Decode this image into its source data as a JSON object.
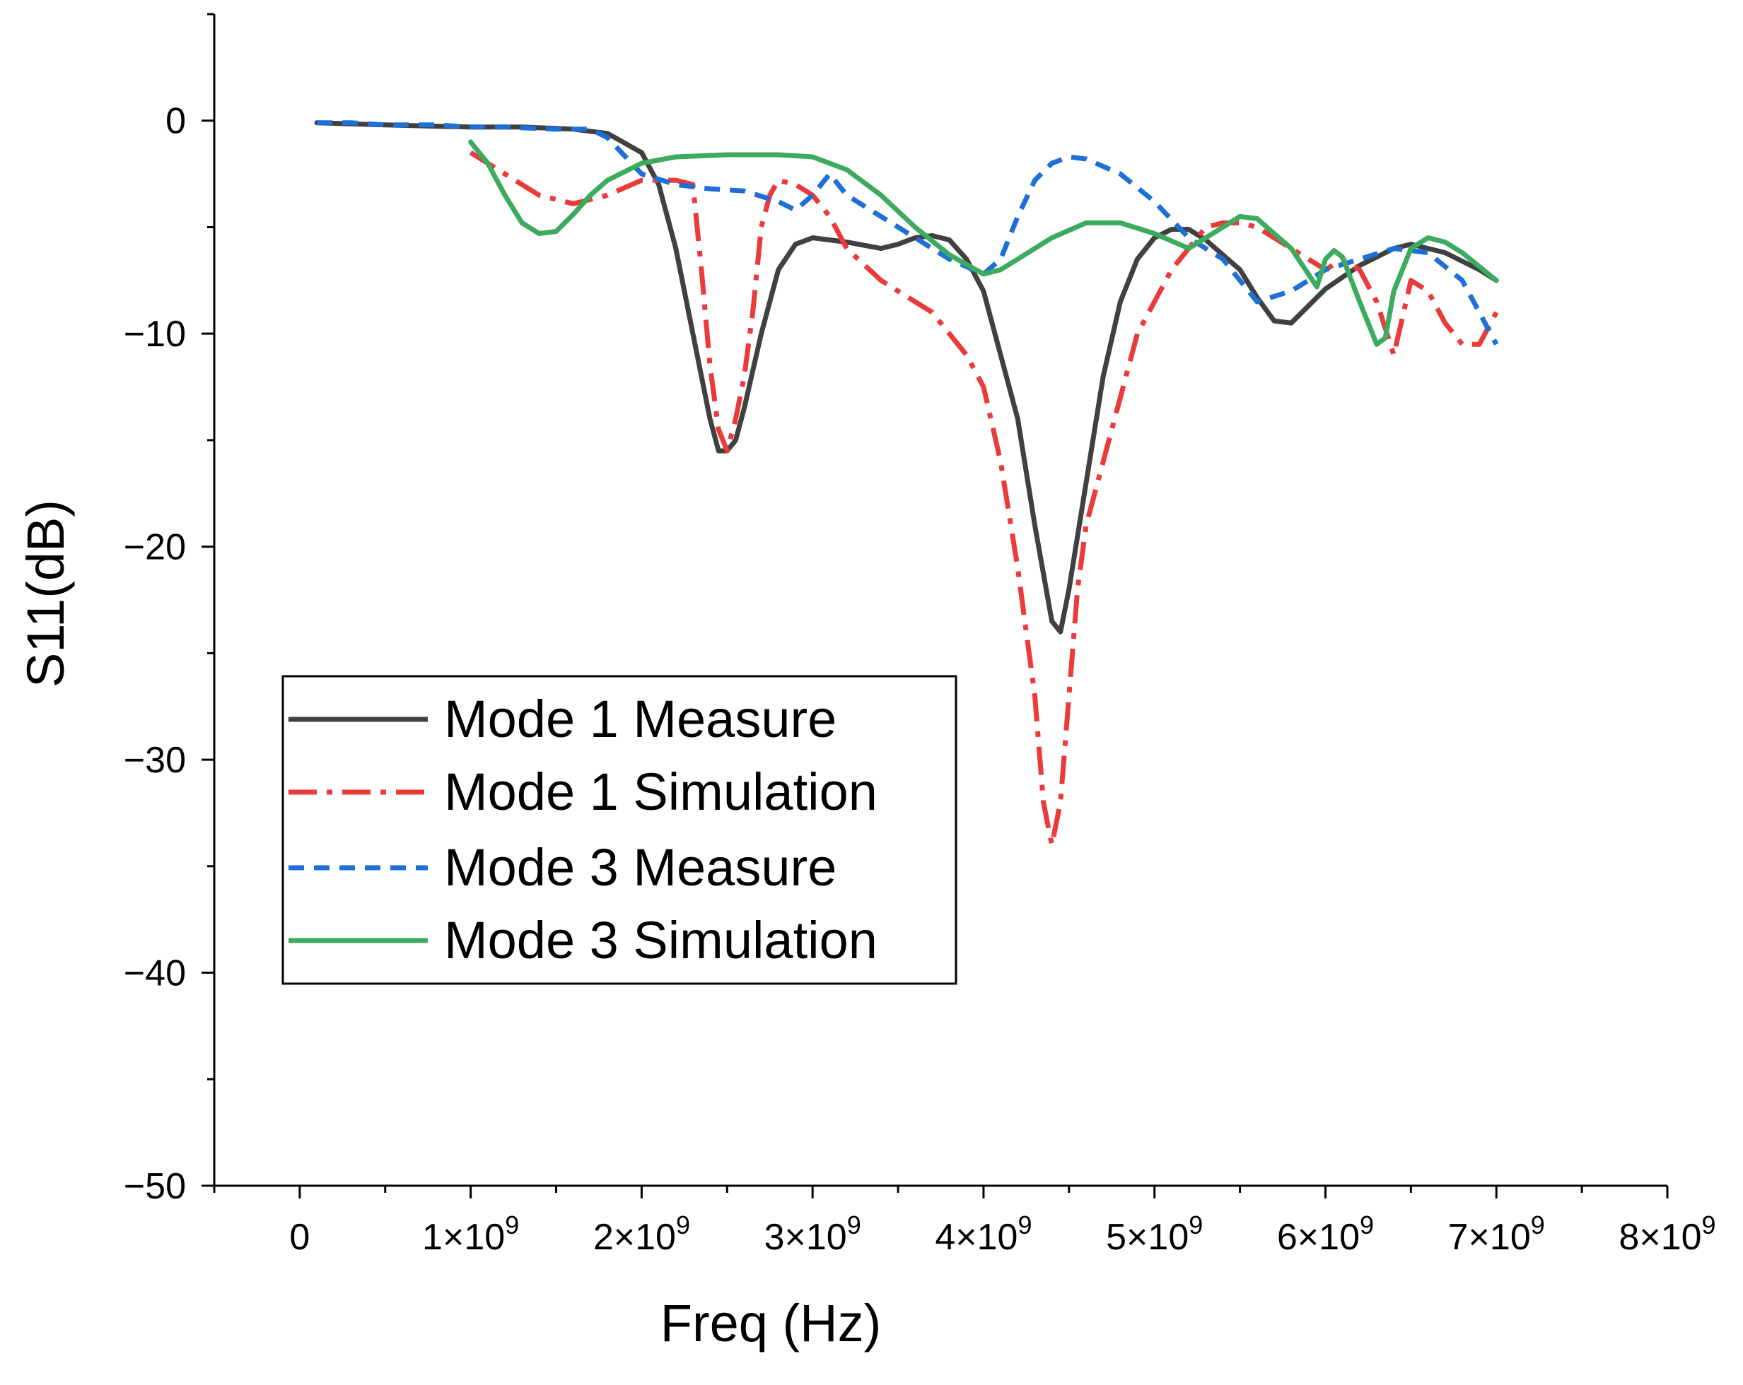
{
  "chart_data": {
    "type": "line",
    "title": "",
    "xlabel": "Freq (Hz)",
    "ylabel": "S11(dB)",
    "xlim": [
      -500000000,
      8000000000
    ],
    "ylim": [
      -50,
      5
    ],
    "x_ticks": [
      {
        "value": 0,
        "label": "0"
      },
      {
        "value": 1000000000,
        "label": "1×10",
        "exp": "9"
      },
      {
        "value": 2000000000,
        "label": "2×10",
        "exp": "9"
      },
      {
        "value": 3000000000,
        "label": "3×10",
        "exp": "9"
      },
      {
        "value": 4000000000,
        "label": "4×10",
        "exp": "9"
      },
      {
        "value": 5000000000,
        "label": "5×10",
        "exp": "9"
      },
      {
        "value": 6000000000,
        "label": "6×10",
        "exp": "9"
      },
      {
        "value": 7000000000,
        "label": "7×10",
        "exp": "9"
      },
      {
        "value": 8000000000,
        "label": "8×10",
        "exp": "9"
      }
    ],
    "y_ticks": [
      {
        "value": 0,
        "label": "0"
      },
      {
        "value": -10,
        "label": "−10"
      },
      {
        "value": -20,
        "label": "−20"
      },
      {
        "value": -30,
        "label": "−30"
      },
      {
        "value": -40,
        "label": "−40"
      },
      {
        "value": -50,
        "label": "−50"
      }
    ],
    "grid": false,
    "legend_position": "lower-left",
    "series": [
      {
        "name": "Mode 1 Measure",
        "color": "#404040",
        "style": "solid",
        "x": [
          0.1,
          0.5,
          1.0,
          1.3,
          1.6,
          1.8,
          2.0,
          2.1,
          2.2,
          2.3,
          2.4,
          2.45,
          2.5,
          2.55,
          2.6,
          2.7,
          2.8,
          2.9,
          3.0,
          3.2,
          3.4,
          3.5,
          3.6,
          3.7,
          3.8,
          3.9,
          4.0,
          4.1,
          4.2,
          4.3,
          4.4,
          4.45,
          4.5,
          4.6,
          4.7,
          4.8,
          4.9,
          5.0,
          5.1,
          5.2,
          5.3,
          5.4,
          5.5,
          5.6,
          5.7,
          5.8,
          5.9,
          6.0,
          6.2,
          6.4,
          6.5,
          6.7,
          6.9,
          7.0
        ],
        "y": [
          -0.1,
          -0.2,
          -0.3,
          -0.3,
          -0.4,
          -0.6,
          -1.5,
          -3.0,
          -6.0,
          -10.0,
          -14.0,
          -15.5,
          -15.5,
          -15.0,
          -13.5,
          -10.0,
          -7.0,
          -5.8,
          -5.5,
          -5.7,
          -6.0,
          -5.8,
          -5.5,
          -5.4,
          -5.6,
          -6.5,
          -8.0,
          -11.0,
          -14.0,
          -19.0,
          -23.5,
          -24.0,
          -22.0,
          -17.0,
          -12.0,
          -8.5,
          -6.5,
          -5.5,
          -5.1,
          -5.1,
          -5.6,
          -6.3,
          -7.0,
          -8.3,
          -9.4,
          -9.5,
          -8.7,
          -7.9,
          -6.8,
          -6.0,
          -5.8,
          -6.2,
          -7.0,
          -7.5
        ]
      },
      {
        "name": "Mode 1 Simulation",
        "color": "#ea3a3a",
        "style": "dashdot",
        "x": [
          1.0,
          1.2,
          1.4,
          1.6,
          1.8,
          2.0,
          2.2,
          2.3,
          2.35,
          2.4,
          2.45,
          2.5,
          2.55,
          2.6,
          2.65,
          2.7,
          2.75,
          2.8,
          2.9,
          3.0,
          3.1,
          3.2,
          3.4,
          3.6,
          3.7,
          3.8,
          3.9,
          4.0,
          4.1,
          4.2,
          4.3,
          4.35,
          4.4,
          4.45,
          4.5,
          4.55,
          4.6,
          4.7,
          4.8,
          4.9,
          5.0,
          5.1,
          5.2,
          5.3,
          5.4,
          5.5,
          5.6,
          5.8,
          6.0,
          6.1,
          6.2,
          6.3,
          6.4,
          6.5,
          6.6,
          6.7,
          6.8,
          6.9,
          7.0
        ],
        "y": [
          -1.5,
          -2.5,
          -3.5,
          -3.9,
          -3.5,
          -2.8,
          -2.8,
          -3.0,
          -7.0,
          -11.5,
          -14.5,
          -15.5,
          -14.0,
          -12.0,
          -9.0,
          -5.0,
          -3.5,
          -2.8,
          -3.0,
          -3.5,
          -4.5,
          -6.0,
          -7.5,
          -8.5,
          -9.0,
          -10.0,
          -11.0,
          -12.5,
          -16.0,
          -21.0,
          -27.0,
          -32.0,
          -34.0,
          -32.0,
          -27.0,
          -22.0,
          -19.0,
          -16.0,
          -13.0,
          -10.0,
          -8.5,
          -7.0,
          -6.0,
          -5.0,
          -4.8,
          -4.8,
          -5.0,
          -6.0,
          -7.0,
          -6.5,
          -7.0,
          -8.5,
          -11.0,
          -7.5,
          -8.0,
          -9.5,
          -10.5,
          -10.5,
          -9.0
        ]
      },
      {
        "name": "Mode 3 Measure",
        "color": "#1f6fd8",
        "style": "dash",
        "x": [
          0.1,
          0.3,
          0.5,
          0.8,
          1.0,
          1.2,
          1.5,
          1.7,
          1.8,
          2.0,
          2.2,
          2.4,
          2.6,
          2.8,
          2.9,
          3.0,
          3.1,
          3.2,
          3.4,
          3.6,
          3.8,
          4.0,
          4.1,
          4.2,
          4.3,
          4.4,
          4.5,
          4.6,
          4.8,
          5.0,
          5.2,
          5.4,
          5.5,
          5.6,
          5.8,
          6.0,
          6.2,
          6.4,
          6.6,
          6.8,
          6.9,
          7.0
        ],
        "y": [
          -0.1,
          -0.1,
          -0.2,
          -0.2,
          -0.3,
          -0.3,
          -0.4,
          -0.4,
          -0.8,
          -2.5,
          -3.0,
          -3.2,
          -3.3,
          -3.8,
          -4.2,
          -3.5,
          -2.5,
          -3.5,
          -4.5,
          -5.5,
          -6.5,
          -7.2,
          -6.5,
          -4.5,
          -2.8,
          -2.0,
          -1.7,
          -1.8,
          -2.5,
          -3.8,
          -5.5,
          -6.5,
          -7.5,
          -8.5,
          -8.0,
          -7.0,
          -6.5,
          -6.0,
          -6.2,
          -7.5,
          -9.0,
          -10.5
        ]
      },
      {
        "name": "Mode 3 Simulation",
        "color": "#3cab5e",
        "style": "solid",
        "x": [
          1.0,
          1.1,
          1.2,
          1.3,
          1.4,
          1.5,
          1.6,
          1.7,
          1.8,
          2.0,
          2.2,
          2.5,
          2.8,
          3.0,
          3.2,
          3.4,
          3.6,
          3.8,
          4.0,
          4.1,
          4.2,
          4.4,
          4.6,
          4.8,
          5.0,
          5.2,
          5.4,
          5.5,
          5.6,
          5.8,
          5.95,
          6.0,
          6.05,
          6.1,
          6.2,
          6.3,
          6.35,
          6.4,
          6.5,
          6.6,
          6.7,
          6.8,
          7.0
        ],
        "y": [
          -1.0,
          -2.0,
          -3.5,
          -4.8,
          -5.3,
          -5.2,
          -4.4,
          -3.5,
          -2.8,
          -2.0,
          -1.7,
          -1.6,
          -1.6,
          -1.7,
          -2.3,
          -3.5,
          -5.0,
          -6.3,
          -7.2,
          -7.0,
          -6.5,
          -5.5,
          -4.8,
          -4.8,
          -5.3,
          -6.0,
          -5.0,
          -4.5,
          -4.6,
          -6.0,
          -7.8,
          -6.5,
          -6.1,
          -6.4,
          -8.5,
          -10.5,
          -10.2,
          -8.0,
          -6.0,
          -5.5,
          -5.7,
          -6.2,
          -7.5
        ]
      }
    ]
  }
}
